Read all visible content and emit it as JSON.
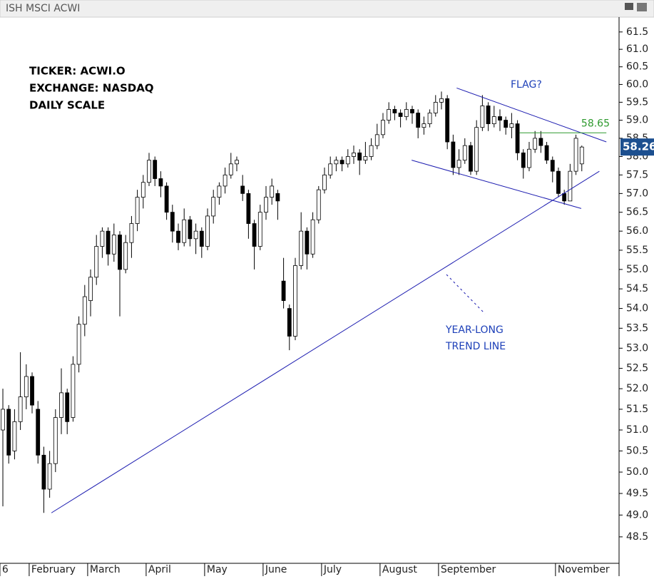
{
  "chart_data": {
    "type": "candlestick",
    "title": "ISH MSCI ACWI",
    "annotations": [
      "TICKER: ACWI.O",
      "EXCHANGE: NASDAQ",
      "DAILY SCALE"
    ],
    "notes": [
      "FLAG?",
      "YEAR-LONG",
      "TREND LINE"
    ],
    "log_scale": true,
    "xlim": [
      -0.49,
      105.37
    ],
    "ylim": [
      47.9,
      61.91
    ],
    "xticks": [
      {
        "value": -0.5,
        "label": "6"
      },
      {
        "value": 4.5,
        "label": "February"
      },
      {
        "value": 14.5,
        "label": "March"
      },
      {
        "value": 24.5,
        "label": "April"
      },
      {
        "value": 34.5,
        "label": "May"
      },
      {
        "value": 44.5,
        "label": "June"
      },
      {
        "value": 54.5,
        "label": "July"
      },
      {
        "value": 64.5,
        "label": "August"
      },
      {
        "value": 74.5,
        "label": "September"
      },
      {
        "value": 94.5,
        "label": "November"
      }
    ],
    "yticks": [
      61.5,
      {
        "value": 61,
        "label": "61.0"
      },
      60.5,
      {
        "value": 60,
        "label": "60.0"
      },
      59.5,
      {
        "value": 59,
        "label": "59.0"
      },
      58.5,
      {
        "value": 58,
        "label": "58.0"
      },
      57.5,
      {
        "value": 57,
        "label": "57.0"
      },
      56.5,
      {
        "value": 56,
        "label": "56.0"
      },
      55.5,
      {
        "value": 55,
        "label": "55.0"
      },
      54.5,
      {
        "value": 54,
        "label": "54.0"
      },
      53.5,
      {
        "value": 53,
        "label": "53.0"
      },
      52.5,
      {
        "value": 52,
        "label": "52.0"
      },
      51.5,
      {
        "value": 51,
        "label": "51.0"
      },
      50.5,
      {
        "value": 50,
        "label": "50.0"
      },
      49.5,
      {
        "value": 49,
        "label": "49.0"
      },
      48.5
    ],
    "up_color": "#ffffff",
    "down_color": "#000000",
    "ohlc": [
      [
        51.0,
        52.0,
        49.2,
        51.5
      ],
      [
        51.5,
        51.6,
        50.2,
        50.4
      ],
      [
        50.5,
        51.5,
        50.3,
        51.2
      ],
      [
        51.2,
        52.9,
        51.0,
        51.8
      ],
      [
        51.8,
        52.6,
        51.5,
        52.3
      ],
      [
        52.3,
        52.4,
        51.4,
        51.6
      ],
      [
        51.5,
        51.7,
        50.2,
        50.4
      ],
      [
        50.4,
        50.6,
        49.05,
        49.6
      ],
      [
        49.6,
        50.5,
        49.4,
        50.2
      ],
      [
        50.2,
        51.5,
        50.0,
        51.3
      ],
      [
        51.3,
        52.5,
        50.9,
        51.9
      ],
      [
        51.9,
        52.0,
        50.9,
        51.2
      ],
      [
        51.3,
        52.8,
        51.2,
        52.6
      ],
      [
        52.6,
        53.8,
        52.4,
        53.6
      ],
      [
        53.6,
        54.6,
        53.3,
        54.3
      ],
      [
        54.2,
        55.0,
        53.8,
        54.8
      ],
      [
        54.8,
        55.9,
        54.6,
        55.6
      ],
      [
        55.6,
        56.1,
        55.3,
        56.0
      ],
      [
        56.0,
        56.1,
        55.1,
        55.4
      ],
      [
        55.4,
        56.2,
        55.2,
        55.9
      ],
      [
        55.9,
        56.0,
        53.8,
        55.0
      ],
      [
        55.0,
        55.9,
        54.9,
        55.7
      ],
      [
        55.7,
        56.4,
        55.3,
        56.2
      ],
      [
        56.2,
        57.1,
        56.0,
        56.9
      ],
      [
        56.9,
        57.5,
        56.6,
        57.3
      ],
      [
        57.3,
        58.1,
        57.2,
        57.9
      ],
      [
        57.9,
        58.0,
        57.2,
        57.4
      ],
      [
        57.4,
        57.6,
        56.9,
        57.2
      ],
      [
        57.2,
        57.3,
        56.3,
        56.5
      ],
      [
        56.5,
        56.7,
        55.7,
        56.0
      ],
      [
        56.0,
        56.2,
        55.5,
        55.7
      ],
      [
        55.7,
        56.6,
        55.6,
        56.3
      ],
      [
        56.3,
        56.4,
        55.6,
        55.8
      ],
      [
        55.8,
        56.2,
        55.4,
        56.0
      ],
      [
        56.0,
        56.1,
        55.3,
        55.6
      ],
      [
        55.6,
        56.6,
        55.5,
        56.4
      ],
      [
        56.4,
        57.1,
        56.2,
        56.9
      ],
      [
        56.9,
        57.3,
        56.7,
        57.2
      ],
      [
        57.2,
        57.7,
        57.0,
        57.5
      ],
      [
        57.5,
        58.1,
        57.4,
        57.8
      ],
      [
        57.8,
        58.0,
        57.6,
        57.9
      ],
      [
        57.2,
        57.5,
        56.8,
        57.0
      ],
      [
        57.0,
        57.1,
        55.8,
        56.2
      ],
      [
        56.2,
        56.3,
        55.0,
        55.6
      ],
      [
        55.6,
        56.7,
        55.5,
        56.5
      ],
      [
        56.5,
        57.2,
        56.3,
        56.9
      ],
      [
        56.9,
        57.4,
        56.7,
        57.2
      ],
      [
        57.0,
        57.1,
        56.3,
        56.8
      ],
      [
        54.7,
        55.3,
        54.0,
        54.2
      ],
      [
        54.0,
        54.1,
        52.95,
        53.3
      ],
      [
        53.3,
        55.3,
        53.2,
        55.1
      ],
      [
        55.1,
        56.5,
        55.0,
        56.0
      ],
      [
        56.0,
        56.1,
        55.0,
        55.4
      ],
      [
        55.4,
        56.5,
        55.3,
        56.3
      ],
      [
        56.3,
        57.2,
        56.2,
        57.1
      ],
      [
        57.1,
        57.7,
        57.0,
        57.5
      ],
      [
        57.5,
        58.0,
        57.4,
        57.8
      ],
      [
        57.8,
        58.0,
        57.6,
        57.9
      ],
      [
        57.9,
        58.0,
        57.6,
        57.8
      ],
      [
        57.8,
        58.2,
        57.7,
        58.0
      ],
      [
        58.0,
        58.3,
        57.8,
        58.1
      ],
      [
        58.1,
        58.2,
        57.5,
        57.9
      ],
      [
        57.9,
        58.4,
        57.8,
        58.0
      ],
      [
        58.0,
        58.5,
        57.9,
        58.3
      ],
      [
        58.3,
        58.9,
        58.2,
        58.6
      ],
      [
        58.6,
        59.2,
        58.5,
        59.0
      ],
      [
        59.0,
        59.5,
        58.9,
        59.3
      ],
      [
        59.3,
        59.4,
        59.0,
        59.2
      ],
      [
        59.2,
        59.3,
        58.8,
        59.1
      ],
      [
        59.1,
        59.5,
        59.0,
        59.3
      ],
      [
        59.3,
        59.4,
        58.9,
        59.2
      ],
      [
        59.2,
        59.3,
        58.5,
        58.8
      ],
      [
        58.8,
        59.1,
        58.6,
        58.9
      ],
      [
        58.9,
        59.3,
        58.8,
        59.2
      ],
      [
        59.2,
        59.7,
        59.1,
        59.5
      ],
      [
        59.5,
        59.8,
        59.3,
        59.6
      ],
      [
        59.6,
        59.7,
        58.2,
        58.4
      ],
      [
        58.4,
        58.6,
        57.5,
        57.7
      ],
      [
        57.7,
        58.2,
        57.5,
        57.9
      ],
      [
        57.9,
        58.5,
        57.8,
        58.3
      ],
      [
        58.3,
        58.4,
        57.5,
        57.6
      ],
      [
        57.6,
        59.0,
        57.5,
        58.8
      ],
      [
        58.8,
        59.7,
        58.7,
        59.4
      ],
      [
        59.4,
        59.5,
        58.7,
        58.9
      ],
      [
        58.9,
        59.4,
        58.8,
        59.1
      ],
      [
        59.1,
        59.3,
        58.7,
        59.0
      ],
      [
        59.0,
        59.1,
        58.6,
        58.8
      ],
      [
        58.8,
        59.2,
        58.5,
        58.9
      ],
      [
        58.9,
        59.0,
        57.9,
        58.1
      ],
      [
        58.1,
        58.2,
        57.4,
        57.7
      ],
      [
        57.7,
        58.4,
        57.6,
        58.2
      ],
      [
        58.2,
        58.7,
        58.1,
        58.5
      ],
      [
        58.5,
        58.7,
        58.1,
        58.3
      ],
      [
        58.3,
        58.4,
        57.8,
        57.9
      ],
      [
        57.9,
        58.0,
        57.3,
        57.6
      ],
      [
        57.6,
        57.7,
        56.9,
        57.0
      ],
      [
        57.0,
        57.1,
        56.7,
        56.8
      ],
      [
        56.8,
        57.8,
        56.8,
        57.6
      ],
      [
        57.6,
        58.6,
        57.5,
        58.5
      ],
      [
        57.8,
        58.3,
        57.6,
        58.26
      ]
    ],
    "lines": [
      {
        "x": [
          8.3,
          102
        ],
        "y": [
          49.05,
          57.6
        ],
        "color": "#1c1cb0"
      },
      {
        "x": [
          77.6,
          103.2
        ],
        "y": [
          59.9,
          58.4
        ],
        "color": "#1c1cb0"
      },
      {
        "x": [
          69.9,
          98.9
        ],
        "y": [
          57.9,
          56.6
        ],
        "color": "#1c1cb0"
      }
    ],
    "resistance": {
      "value": 58.65,
      "x": [
        88.3,
        103.2
      ],
      "color": "#2e9a2e"
    },
    "last_color": "#1c4f8f"
  }
}
